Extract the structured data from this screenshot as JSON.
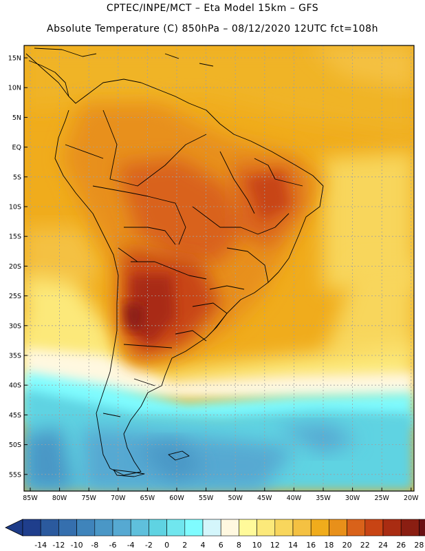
{
  "header": {
    "line1": "CPTEC/INPE/MCT –  Eta Model 15km – GFS",
    "line2": "Absolute Temperature (C) 850hPa – 08/12/2020 12UTC fct=108h"
  },
  "axes": {
    "lat_labels": [
      "15N",
      "10N",
      "5N",
      "EQ",
      "5S",
      "10S",
      "15S",
      "20S",
      "25S",
      "30S",
      "35S",
      "40S",
      "45S",
      "50S",
      "55S"
    ],
    "lon_labels": [
      "85W",
      "80W",
      "75W",
      "70W",
      "65W",
      "60W",
      "55W",
      "50W",
      "45W",
      "40W",
      "35W",
      "30W",
      "25W",
      "20W"
    ]
  },
  "colorbar": {
    "labels": [
      "-14",
      "-12",
      "-10",
      "-8",
      "-6",
      "-4",
      "-2",
      "0",
      "2",
      "4",
      "6",
      "8",
      "10",
      "12",
      "14",
      "16",
      "18",
      "20",
      "22",
      "24",
      "26",
      "28"
    ],
    "colors": [
      "#1f3e8c",
      "#2b5a9e",
      "#356fae",
      "#3f84bb",
      "#4a97c6",
      "#56a9d2",
      "#5fc0dc",
      "#5fd3e2",
      "#70e6ee",
      "#7ffcff",
      "#d4f6fb",
      "#fff8e0",
      "#fffa9a",
      "#fce97a",
      "#f8d65c",
      "#f4c142",
      "#f0ac1c",
      "#e8901a",
      "#d9621a",
      "#c84414",
      "#a92c12",
      "#8a1e12",
      "#6a1013"
    ],
    "left_arrow_color": "#1d3b88",
    "right_arrow_color": "#6a0f13"
  }
}
